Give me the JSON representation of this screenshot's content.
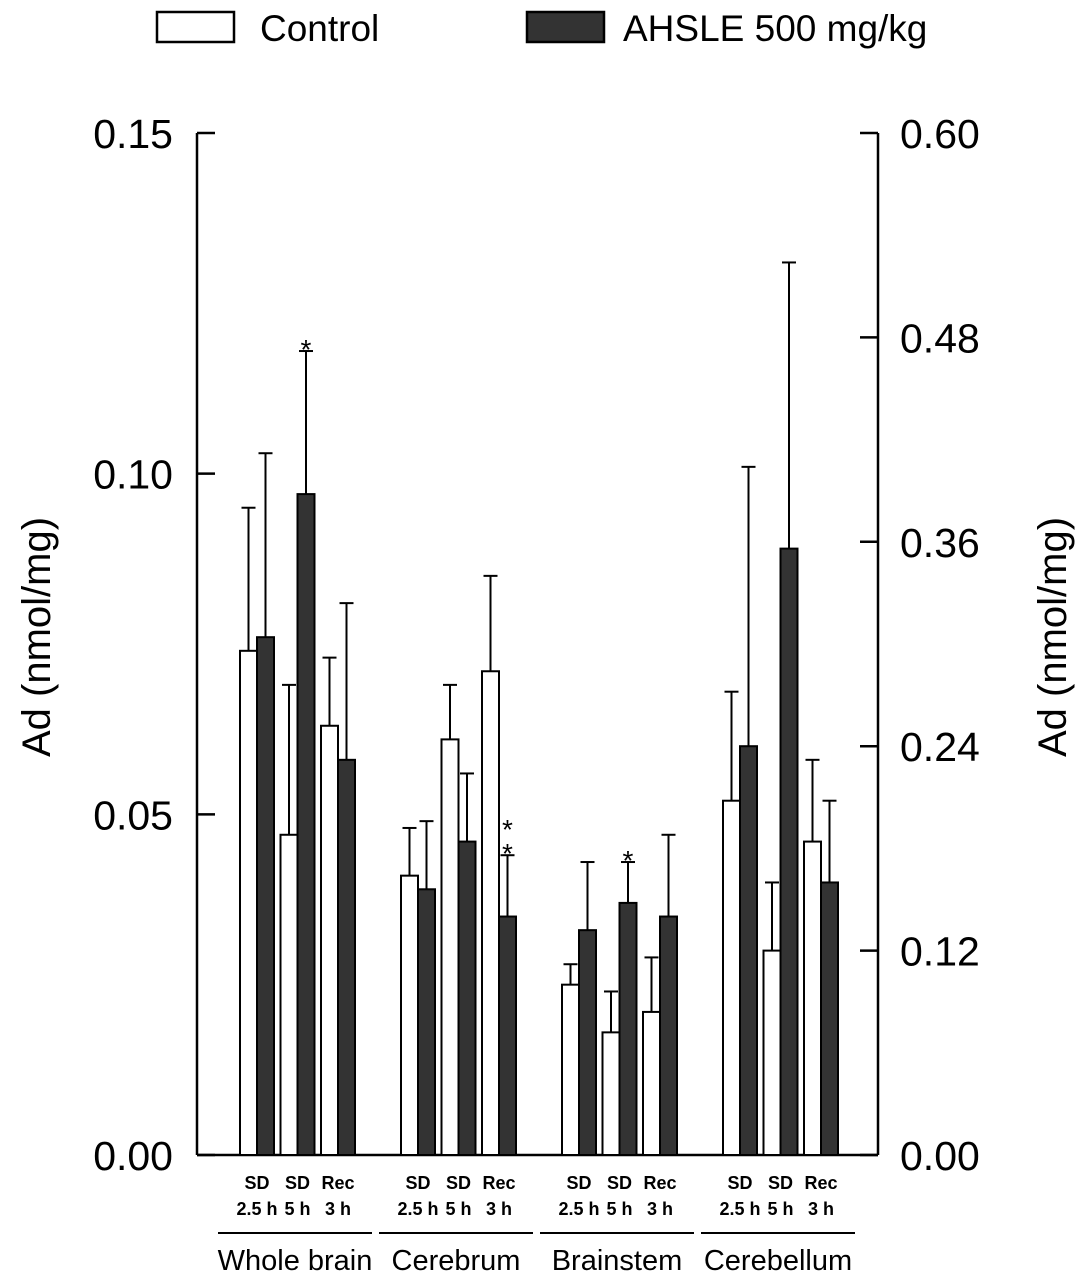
{
  "chart_data": {
    "type": "bar",
    "groups": [
      "Whole brain",
      "Cerebrum",
      "Brainstem",
      "Cerebellum"
    ],
    "subcategories": [
      {
        "line1": "SD",
        "line2": "2.5 h"
      },
      {
        "line1": "SD",
        "line2": "5 h"
      },
      {
        "line1": "Rec",
        "line2": "3 h"
      }
    ],
    "series": [
      {
        "name": "Control",
        "color": "#ffffff",
        "values": [
          [
            0.074,
            0.047,
            0.063
          ],
          [
            0.041,
            0.061,
            0.071
          ],
          [
            0.025,
            0.018,
            0.021
          ],
          [
            0.052,
            0.03,
            0.046
          ]
        ],
        "errors": [
          [
            0.021,
            0.022,
            0.01
          ],
          [
            0.007,
            0.008,
            0.014
          ],
          [
            0.003,
            0.006,
            0.008
          ],
          [
            0.016,
            0.01,
            0.012
          ]
        ]
      },
      {
        "name": "AHSLE 500 mg/kg",
        "color": "#333333",
        "values": [
          [
            0.076,
            0.097,
            0.058
          ],
          [
            0.039,
            0.046,
            0.035
          ],
          [
            0.033,
            0.037,
            0.035
          ],
          [
            0.06,
            0.089,
            0.04
          ]
        ],
        "errors": [
          [
            0.027,
            0.021,
            0.023
          ],
          [
            0.01,
            0.01,
            0.009
          ],
          [
            0.01,
            0.006,
            0.012
          ],
          [
            0.041,
            0.042,
            0.012
          ]
        ]
      }
    ],
    "annotations": [
      {
        "group": 0,
        "subcategory": 1,
        "series": 1,
        "text": "*"
      },
      {
        "group": 1,
        "subcategory": 2,
        "series": 1,
        "text": "**"
      },
      {
        "group": 2,
        "subcategory": 1,
        "series": 1,
        "text": "*"
      }
    ],
    "y_left": {
      "label": "Ad (nmol/mg)",
      "ylim": [
        0,
        0.15
      ],
      "ticks": [
        0,
        0.05,
        0.1,
        0.15
      ],
      "tick_labels": [
        "0.00",
        "0.05",
        "0.10",
        "0.15"
      ]
    },
    "y_right": {
      "label": "Ad (nmol/mg)",
      "ylim": [
        0,
        0.6
      ],
      "ticks": [
        0,
        0.12,
        0.24,
        0.36,
        0.48,
        0.6
      ],
      "tick_labels": [
        "0.00",
        "0.12",
        "0.24",
        "0.36",
        "0.48",
        "0.60"
      ]
    },
    "legend": "top",
    "grid": false
  }
}
